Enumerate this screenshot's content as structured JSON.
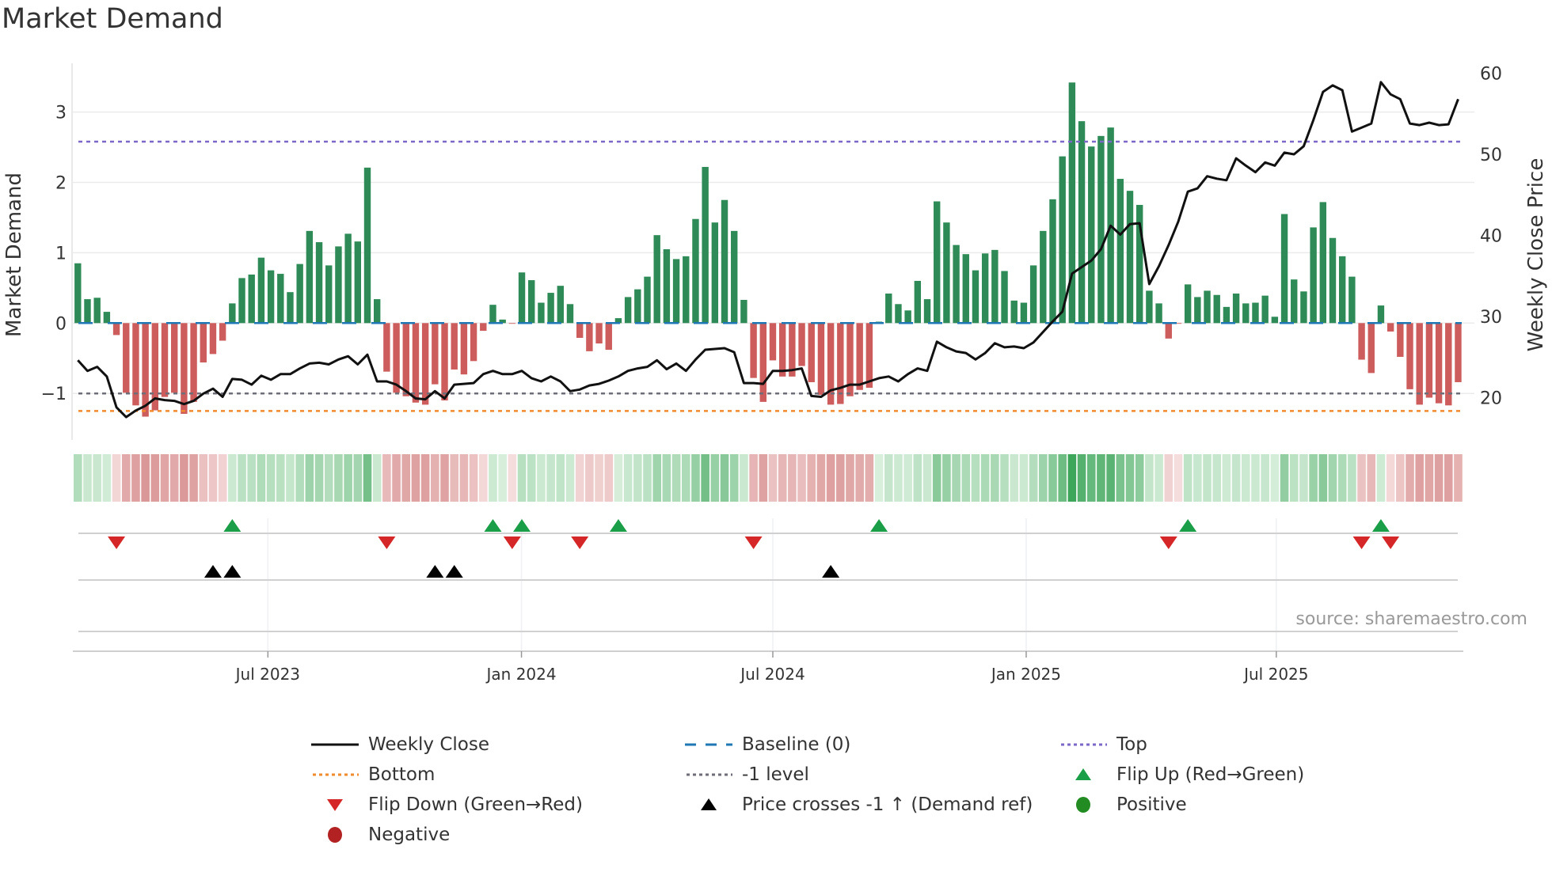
{
  "chart_data": {
    "type": "bar",
    "title": "Market Demand",
    "ylabel": "Market Demand",
    "y2label": "Weekly Close Price",
    "source": "source: sharemaestro.com",
    "ylim": [
      -1.66,
      3.72
    ],
    "y2lim": [
      18.6,
      61.0
    ],
    "yticks": [
      {
        "v": 3,
        "label": "3"
      },
      {
        "v": 2,
        "label": "2"
      },
      {
        "v": 1,
        "label": "1"
      },
      {
        "v": 0,
        "label": "0"
      },
      {
        "v": -1,
        "label": "−1"
      }
    ],
    "y2ticks": [
      {
        "v": 60,
        "label": "60"
      },
      {
        "v": 50,
        "label": "50"
      },
      {
        "v": 40,
        "label": "40"
      },
      {
        "v": 30,
        "label": "30"
      },
      {
        "v": 20,
        "label": "20"
      }
    ],
    "xticks": [
      {
        "pos": 19.69,
        "label": "Jul 2023"
      },
      {
        "pos": 45.96,
        "label": "Jan 2024"
      },
      {
        "pos": 72.0,
        "label": "Jul 2024"
      },
      {
        "pos": 98.25,
        "label": "Jan 2025"
      },
      {
        "pos": 124.16,
        "label": "Jul 2025"
      }
    ],
    "x_unit": "week index",
    "demand": [
      0.85,
      0.34,
      0.36,
      0.16,
      -0.17,
      -0.99,
      -1.17,
      -1.33,
      -1.24,
      -1.05,
      -0.99,
      -1.29,
      -1.12,
      -0.56,
      -0.44,
      -0.25,
      0.28,
      0.64,
      0.69,
      0.93,
      0.75,
      0.7,
      0.44,
      0.84,
      1.31,
      1.15,
      0.82,
      1.09,
      1.27,
      1.16,
      2.21,
      0.34,
      -0.69,
      -0.99,
      -1.04,
      -1.13,
      -1.16,
      -0.87,
      -1.1,
      -0.66,
      -0.73,
      -0.54,
      -0.11,
      0.26,
      0.05,
      -0.01,
      0.72,
      0.61,
      0.29,
      0.43,
      0.53,
      0.27,
      -0.21,
      -0.4,
      -0.29,
      -0.38,
      0.07,
      0.37,
      0.48,
      0.66,
      1.25,
      1.05,
      0.91,
      0.95,
      1.48,
      2.22,
      1.43,
      1.75,
      1.31,
      0.33,
      -0.78,
      -1.12,
      -0.53,
      -0.76,
      -0.76,
      -0.61,
      -0.84,
      -1.02,
      -1.16,
      -1.15,
      -1.04,
      -0.95,
      -0.92,
      0.02,
      0.42,
      0.27,
      0.18,
      0.6,
      0.34,
      1.73,
      1.43,
      1.11,
      0.98,
      0.75,
      0.99,
      1.04,
      0.74,
      0.32,
      0.29,
      0.82,
      1.31,
      1.76,
      2.37,
      3.42,
      2.87,
      2.51,
      2.66,
      2.78,
      2.05,
      1.88,
      1.68,
      0.46,
      0.28,
      -0.22,
      -0.01,
      0.55,
      0.37,
      0.46,
      0.4,
      0.23,
      0.42,
      0.28,
      0.29,
      0.39,
      0.09,
      1.55,
      0.62,
      0.45,
      1.36,
      1.72,
      1.21,
      0.95,
      0.66,
      -0.52,
      -0.71,
      0.25,
      -0.12,
      -0.48,
      -0.94,
      -1.16,
      -1.06,
      -1.14,
      -1.17,
      -0.84
    ],
    "price": [
      24.6,
      23.3,
      23.8,
      22.6,
      18.8,
      17.6,
      18.4,
      19.0,
      19.9,
      19.7,
      19.6,
      19.2,
      19.6,
      20.5,
      21.1,
      20.1,
      22.3,
      22.2,
      21.6,
      22.7,
      22.2,
      22.9,
      22.9,
      23.6,
      24.2,
      24.3,
      24.1,
      24.7,
      25.1,
      24.1,
      25.3,
      22.0,
      22.0,
      21.6,
      20.8,
      19.9,
      19.8,
      20.8,
      19.9,
      21.6,
      21.7,
      21.8,
      22.9,
      23.3,
      22.9,
      22.9,
      23.3,
      22.4,
      22.0,
      22.6,
      22.0,
      20.8,
      21.0,
      21.5,
      21.7,
      22.1,
      22.6,
      23.3,
      23.6,
      23.8,
      24.6,
      23.5,
      24.2,
      23.3,
      24.7,
      25.9,
      26.0,
      26.1,
      25.6,
      21.8,
      21.8,
      21.7,
      23.3,
      23.3,
      23.4,
      23.6,
      20.2,
      20.1,
      20.9,
      21.2,
      21.6,
      21.6,
      22.0,
      22.4,
      22.6,
      22.0,
      22.9,
      23.6,
      23.3,
      26.9,
      26.2,
      25.7,
      25.5,
      24.7,
      25.5,
      26.7,
      26.2,
      26.3,
      26.1,
      26.8,
      28.1,
      29.4,
      30.6,
      35.3,
      36.1,
      36.9,
      38.3,
      41.2,
      40.1,
      41.4,
      41.5,
      34.0,
      36.2,
      38.8,
      41.7,
      45.4,
      45.8,
      47.3,
      47.0,
      46.8,
      49.5,
      48.6,
      47.8,
      49.0,
      48.6,
      50.2,
      50.0,
      51.0,
      54.2,
      57.7,
      58.5,
      57.9,
      52.8,
      53.3,
      53.8,
      58.9,
      57.4,
      56.8,
      53.8,
      53.6,
      53.9,
      53.6,
      53.7,
      56.8
    ],
    "reference_lines": {
      "baseline": 0,
      "top": 2.58,
      "minus_one": -1,
      "bottom": -1.25
    },
    "markers": {
      "flip_up": [
        17,
        44,
        47,
        57,
        84,
        116,
        136
      ],
      "flip_down": [
        5,
        33,
        46,
        53,
        71,
        114,
        134,
        137
      ],
      "price_cross": [
        15,
        17,
        38,
        40,
        79
      ]
    },
    "legend_position": "bottom-center",
    "legend": [
      {
        "key": "weekly-close",
        "label": "Weekly Close"
      },
      {
        "key": "baseline",
        "label": "Baseline (0)"
      },
      {
        "key": "top",
        "label": "Top"
      },
      {
        "key": "bottom",
        "label": "Bottom"
      },
      {
        "key": "minus-one",
        "label": "-1 level"
      },
      {
        "key": "flip-up",
        "label": "Flip Up (Red→Green)"
      },
      {
        "key": "flip-down",
        "label": "Flip Down (Green→Red)"
      },
      {
        "key": "price-cross",
        "label": "Price crosses -1 ↑ (Demand ref)"
      },
      {
        "key": "positive",
        "label": "Positive"
      },
      {
        "key": "negative",
        "label": "Negative"
      }
    ]
  },
  "colors": {
    "positive_bar": "#2e8b57",
    "negative_bar": "#cd5c5c",
    "price_line": "#111111",
    "baseline": "#1f77b4",
    "top": "#7b68c8",
    "bottom": "#f28a2e",
    "minus_one": "#6e6e78",
    "flip_up": "#1a9e47",
    "flip_down": "#d62728",
    "price_cross": "#000000",
    "positive_dot": "#228b22",
    "negative_dot": "#b22222"
  }
}
